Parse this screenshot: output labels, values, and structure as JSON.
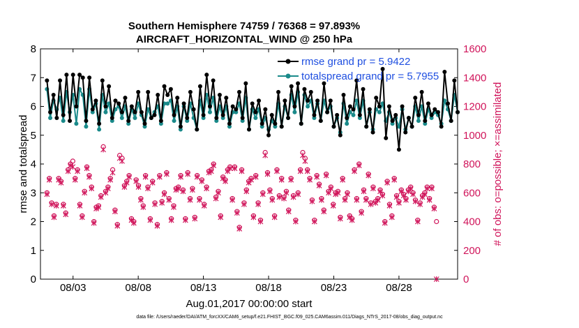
{
  "chart_data": {
    "type": "line",
    "title_line1": "Southern Hemisphere 74759 / 76368 = 97.893%",
    "title_line2": "AIRCRAFT_HORIZONTAL_WIND @ 250 hPa",
    "xlabel": "Aug.01,2017 00:00:00 start",
    "ylabel_left": "rmse and totalspread",
    "ylabel_right": "# of obs: o=possible; ×=assimilated",
    "x_ticks": [
      "08/03",
      "08/08",
      "08/13",
      "08/18",
      "08/23",
      "08/28"
    ],
    "x_tick_days": [
      3,
      8,
      13,
      18,
      23,
      28
    ],
    "xlim": [
      0.5,
      32.5
    ],
    "y_left_ticks": [
      "0",
      "1",
      "2",
      "3",
      "4",
      "5",
      "6",
      "7",
      "8"
    ],
    "ylim_left": [
      0,
      8
    ],
    "y_right_ticks": [
      "0",
      "200",
      "400",
      "600",
      "800",
      "1000",
      "1200",
      "1400",
      "1600"
    ],
    "ylim_right": [
      0,
      1600
    ],
    "colors": {
      "rmse": "#000000",
      "spread": "#1a8a8a",
      "obs": "#d0145a",
      "legend_text": "#1f4fe0"
    },
    "series": [
      {
        "name": "rmse grand pr = 5.9422",
        "values": [
          6.9,
          5.8,
          6.4,
          5.6,
          6.9,
          5.7,
          7.1,
          5.5,
          7.1,
          6.0,
          7.1,
          7.0,
          5.5,
          7.0,
          5.9,
          6.2,
          5.4,
          6.9,
          6.0,
          6.7,
          5.6,
          6.2,
          6.1,
          5.8,
          6.3,
          5.5,
          6.0,
          5.8,
          6.5,
          5.8,
          5.4,
          6.5,
          5.6,
          5.7,
          6.4,
          5.5,
          6.7,
          6.4,
          6.6,
          5.7,
          6.3,
          5.3,
          6.1,
          5.6,
          6.5,
          5.9,
          5.2,
          6.7,
          5.7,
          7.1,
          6.0,
          6.9,
          5.6,
          6.4,
          5.7,
          6.3,
          5.4,
          6.0,
          5.9,
          6.5,
          5.6,
          6.8,
          5.2,
          6.1,
          5.8,
          6.2,
          5.4,
          5.9,
          5.0,
          5.7,
          5.4,
          6.5,
          5.3,
          6.2,
          5.6,
          6.7,
          6.0,
          6.8,
          5.4,
          6.6,
          6.2,
          6.5,
          5.7,
          6.2,
          5.5,
          6.8,
          5.8,
          6.2,
          5.3,
          5.7,
          5.0,
          6.4,
          5.6,
          6.0,
          5.9,
          6.9,
          5.7,
          6.6,
          5.3,
          5.9,
          5.1,
          6.3,
          6.0,
          7.3,
          4.9,
          6.0,
          5.5,
          5.7,
          4.5,
          6.0,
          5.1,
          5.6,
          5.3,
          6.3,
          5.7,
          6.5,
          5.5,
          6.1,
          5.7,
          5.9,
          5.8,
          5.3,
          7.2,
          6.1,
          5.5,
          6.9,
          5.8,
          6.1,
          5.9,
          6.5,
          5.5,
          5.6,
          5.4,
          6.0,
          5.3,
          5.9,
          5.4,
          5.6,
          5.3,
          6.0,
          5.0,
          5.7,
          5.1,
          6.0,
          5.3,
          5.8,
          4.9,
          6.3,
          5.2,
          5.7,
          5.0,
          6.2,
          5.6,
          5.4,
          4.8,
          6.1,
          5.3,
          5.9,
          5.6,
          6.3,
          5.7,
          6.0,
          5.4,
          5.0
        ],
        "start_day": 1.0,
        "step_days": 0.25
      },
      {
        "name": "totalspread grand pr = 5.7955",
        "values": [
          6.6,
          5.6,
          6.2,
          5.9,
          6.3,
          5.5,
          6.5,
          5.8,
          6.4,
          5.4,
          6.6,
          6.4,
          5.3,
          6.6,
          5.8,
          6.1,
          5.2,
          6.4,
          5.8,
          6.1,
          5.5,
          5.9,
          6.0,
          5.6,
          6.0,
          5.4,
          5.9,
          5.6,
          6.1,
          5.7,
          5.3,
          5.9,
          5.6,
          5.8,
          6.0,
          5.4,
          6.1,
          6.1,
          6.2,
          5.5,
          6.0,
          5.2,
          6.0,
          5.5,
          6.1,
          5.6,
          5.2,
          6.2,
          5.6,
          6.4,
          5.8,
          6.3,
          5.5,
          6.0,
          5.6,
          6.0,
          5.3,
          5.8,
          5.8,
          6.1,
          5.5,
          6.3,
          5.2,
          5.9,
          5.6,
          5.9,
          5.3,
          5.6,
          5.2,
          5.5,
          5.3,
          6.1,
          5.3,
          6.0,
          5.6,
          6.4,
          5.8,
          6.5,
          5.4,
          6.4,
          6.0,
          6.2,
          5.6,
          6.1,
          5.5,
          6.2,
          5.8,
          6.0,
          5.3,
          5.6,
          5.1,
          6.1,
          5.4,
          5.8,
          5.7,
          6.2,
          5.6,
          6.2,
          5.3,
          5.8,
          5.2,
          5.9,
          5.8,
          6.1,
          5.5,
          5.8,
          5.4,
          5.6,
          5.3,
          5.9,
          5.2,
          5.6,
          5.3,
          6.0,
          5.5,
          6.0,
          5.4,
          5.9,
          5.6,
          5.8,
          5.7,
          5.4,
          6.2,
          5.9,
          5.5,
          6.4,
          5.8,
          6.0,
          5.8,
          6.1,
          5.5,
          5.6,
          5.4,
          5.8,
          5.3,
          5.7,
          5.3,
          5.5,
          5.2,
          5.7,
          5.1,
          5.5,
          5.2,
          5.8,
          5.3,
          5.6,
          5.0,
          5.9,
          5.2,
          5.6,
          5.1,
          5.8,
          5.5,
          5.4,
          5.0,
          5.7,
          5.3,
          5.6,
          5.5,
          5.9,
          5.5,
          5.7,
          5.3,
          5.1
        ],
        "start_day": 1.0,
        "step_days": 0.25
      },
      {
        "name": "# of obs possible",
        "values": [
          600,
          700,
          530,
          440,
          520,
          700,
          680,
          520,
          460,
          760,
          800,
          820,
          700,
          760,
          520,
          440,
          610,
          780,
          720,
          640,
          400,
          500,
          510,
          580,
          920,
          610,
          640,
          700,
          760,
          480,
          380,
          860,
          840,
          650,
          680,
          720,
          420,
          400,
          690,
          650,
          560,
          510,
          720,
          640,
          420,
          680,
          530,
          380,
          720,
          540,
          600,
          740,
          560,
          420,
          510,
          630,
          640,
          720,
          620,
          420,
          740,
          560,
          630,
          430,
          720,
          560,
          690,
          520,
          640,
          750,
          760,
          800,
          570,
          610,
          440,
          710,
          690,
          760,
          780,
          560,
          780,
          470,
          360,
          760,
          530,
          620,
          680,
          700,
          440,
          720,
          530,
          410,
          600,
          880,
          740,
          620,
          560,
          440,
          760,
          580,
          700,
          570,
          610,
          480,
          700,
          580,
          410,
          600,
          760,
          880,
          840,
          760,
          700,
          550,
          410,
          720,
          660,
          560,
          480,
          730,
          610,
          640,
          520,
          600,
          610,
          430,
          700,
          560,
          600,
          440,
          420,
          760,
          560,
          800,
          470,
          620,
          560,
          730,
          530,
          640,
          540,
          560,
          620,
          590,
          400,
          680,
          520,
          440,
          700,
          580,
          540,
          620,
          590,
          560,
          620,
          640,
          600,
          550,
          410,
          530,
          580,
          600,
          640,
          560,
          640,
          500,
          400
        ],
        "start_day": 1.0,
        "step_days": 0.18
      },
      {
        "name": "# of obs assimilated",
        "values": [
          590,
          690,
          520,
          430,
          510,
          690,
          670,
          510,
          450,
          750,
          790,
          780,
          690,
          750,
          510,
          430,
          600,
          770,
          710,
          630,
          390,
          490,
          500,
          570,
          900,
          600,
          630,
          690,
          740,
          470,
          370,
          840,
          820,
          640,
          670,
          710,
          410,
          390,
          680,
          640,
          550,
          500,
          710,
          630,
          410,
          670,
          520,
          370,
          710,
          530,
          590,
          730,
          550,
          410,
          500,
          620,
          630,
          710,
          610,
          410,
          730,
          550,
          620,
          420,
          710,
          550,
          680,
          510,
          630,
          740,
          750,
          790,
          560,
          600,
          430,
          700,
          680,
          750,
          770,
          550,
          770,
          460,
          350,
          750,
          520,
          610,
          670,
          690,
          430,
          710,
          520,
          400,
          590,
          860,
          730,
          610,
          550,
          430,
          750,
          570,
          690,
          560,
          600,
          470,
          690,
          570,
          400,
          590,
          750,
          860,
          820,
          750,
          690,
          540,
          400,
          710,
          650,
          550,
          470,
          720,
          600,
          630,
          510,
          590,
          600,
          420,
          690,
          550,
          590,
          430,
          410,
          750,
          550,
          790,
          460,
          610,
          550,
          720,
          520,
          630,
          530,
          550,
          610,
          580,
          390,
          670,
          510,
          430,
          690,
          570,
          530,
          610,
          580,
          550,
          610,
          630,
          590,
          540,
          400,
          520,
          570,
          590,
          630,
          550,
          630,
          490,
          0
        ],
        "start_day": 1.0,
        "step_days": 0.18
      }
    ]
  },
  "legend": {
    "rmse_label": "rmse grand pr = 5.9422",
    "spread_label": "totalspread grand pr = 5.7955"
  },
  "footer": "data file: /Users/raeder/DAI/ATM_forcXX/CAM6_setup/f.e21.FHIST_BGC.f09_025.CAM6assim.011/Diags_NTrS_2017-08/obs_diag_output.nc"
}
